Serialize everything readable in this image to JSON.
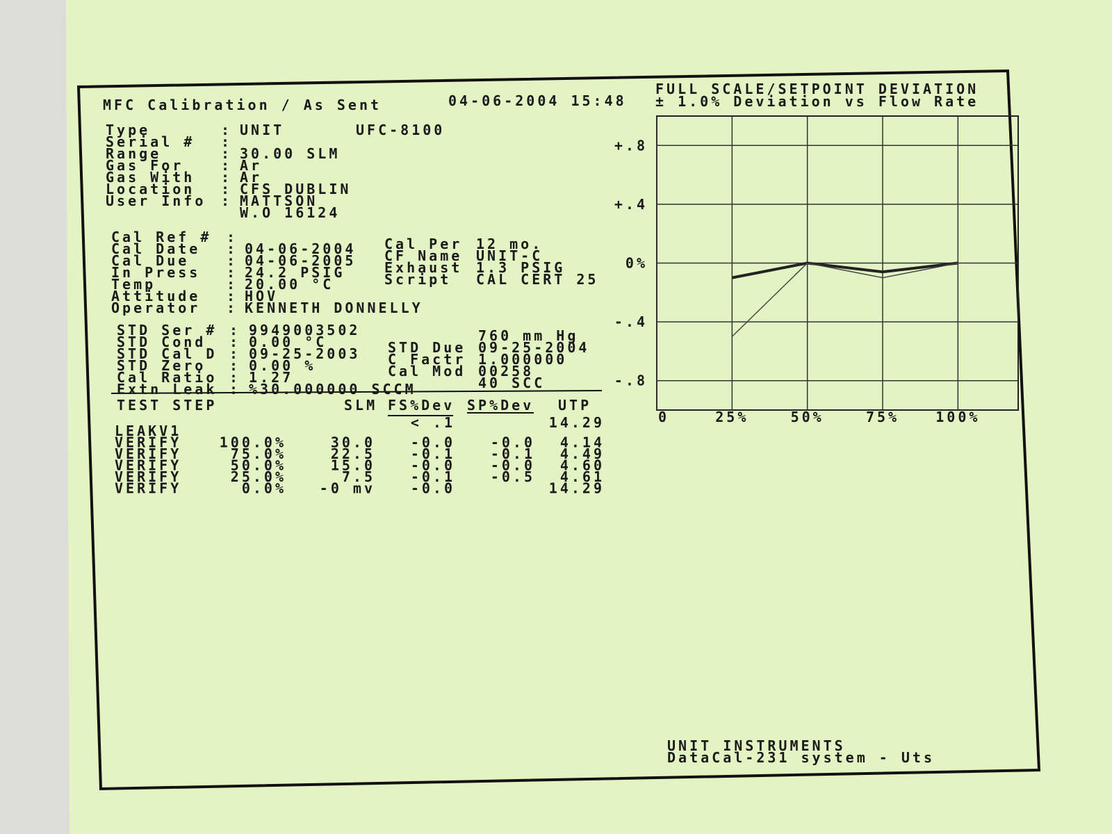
{
  "document": {
    "header": {
      "title": "MFC Calibration / As Sent",
      "timestamp": "04-06-2004 15:48"
    },
    "unit_info": [
      {
        "label": "Type",
        "values": [
          "UNIT",
          "UFC-8100"
        ]
      },
      {
        "label": "Serial #"
      },
      {
        "label": "Range",
        "values": [
          "30.00 SLM"
        ]
      },
      {
        "label": "Gas For",
        "values": [
          "Ar"
        ]
      },
      {
        "label": "Gas With",
        "values": [
          "Ar"
        ]
      },
      {
        "label": "Location",
        "values": [
          "CFS DUBLIN"
        ]
      },
      {
        "label": "User Info",
        "values": [
          "MATTSON"
        ]
      },
      {
        "values": [
          "W.O 16124"
        ]
      }
    ],
    "cal_info": [
      {
        "label": "Cal Ref #"
      },
      {
        "label": "Cal Date",
        "values": [
          "04-06-2004"
        ]
      },
      {
        "label": "Cal Due",
        "values": [
          "04-06-2005"
        ]
      },
      {
        "label": "In Press",
        "values": [
          "24.2 PSIG"
        ]
      },
      {
        "label": "Temp",
        "values": [
          "20.00 °C"
        ]
      },
      {
        "label": "Attitude",
        "values": [
          "HOV"
        ]
      },
      {
        "label": "Operator",
        "values": [
          "KENNETH DONNELLY"
        ]
      }
    ],
    "cal_info_right": [
      {
        "label": "Cal Per",
        "values": [
          "12 mo."
        ]
      },
      {
        "label": "CF Name",
        "values": [
          "UNIT-C"
        ]
      },
      {
        "label": "Exhaust",
        "values": [
          "1.3 PSIG"
        ]
      },
      {
        "label": "Script",
        "values": [
          "CAL CERT 25"
        ]
      }
    ],
    "std_info": [
      {
        "label": "STD Ser #",
        "values": [
          "9949003502"
        ]
      },
      {
        "label": "STD Cond",
        "values": [
          "0.00 °C"
        ]
      },
      {
        "label": "STD Cal D",
        "values": [
          "09-25-2003"
        ]
      },
      {
        "label": "STD Zero",
        "values": [
          "0.00 %"
        ]
      },
      {
        "label": "Cal Ratio",
        "values": [
          "1.27"
        ]
      },
      {
        "label": "Extn Leak",
        "values": [
          "%30.000000 SCCM"
        ]
      }
    ],
    "std_info_right": [
      {
        "values": [
          "760 mm Hg"
        ]
      },
      {
        "label": "STD Due",
        "values": [
          "09-25-2004"
        ]
      },
      {
        "label": "C Factr",
        "values": [
          "1.000000"
        ]
      },
      {
        "label": "Cal Mod",
        "values": [
          "00258"
        ]
      },
      {
        "values": [
          "40 SCC"
        ]
      }
    ],
    "table": {
      "headers": [
        "TEST STEP",
        "SLM",
        "FS%Dev",
        "SP%Dev",
        "UTP"
      ],
      "rows": [
        [
          "LEAKV1",
          null,
          null,
          "< .1",
          null,
          "14.29"
        ],
        [
          "VERIFY",
          "100.0%",
          "30.0",
          "-0.0",
          "-0.0",
          "4.14"
        ],
        [
          "VERIFY",
          "75.0%",
          "22.5",
          "-0.1",
          "-0.1",
          "4.49"
        ],
        [
          "VERIFY",
          "50.0%",
          "15.0",
          "-0.0",
          "-0.0",
          "4.60"
        ],
        [
          "VERIFY",
          "25.0%",
          "7.5",
          "-0.1",
          "-0.5",
          "4.61"
        ],
        [
          "VERIFY",
          "0.0%",
          "-0 mv",
          "-0.0",
          null,
          "14.29"
        ]
      ]
    },
    "footer": [
      "UNIT INSTRUMENTS",
      "DataCal-231 system - Uts"
    ]
  },
  "chart_data": {
    "type": "line",
    "title": "FULL SCALE/SETPOINT DEVIATION",
    "subtitle": "± 1.0% Deviation vs Flow Rate",
    "x": [
      25,
      50,
      75,
      100
    ],
    "series": [
      {
        "name": "FS%Dev",
        "color": "#222",
        "values": [
          -0.1,
          0.0,
          -0.06,
          0.0
        ]
      },
      {
        "name": "SP%Dev",
        "color": "#444",
        "values": [
          -0.5,
          0.0,
          -0.1,
          0.0
        ]
      }
    ],
    "xlim": [
      0,
      120
    ],
    "xticks": [
      0,
      {
        "value": 25,
        "label": "25%"
      },
      {
        "value": 50,
        "label": "50%"
      },
      {
        "value": 75,
        "label": "75%"
      },
      {
        "value": 100,
        "label": "100%"
      }
    ],
    "ylim": [
      -1,
      1
    ],
    "yticks": [
      {
        "value": 0.8,
        "label": "+.8"
      },
      {
        "value": 0.4,
        "label": "+.4"
      },
      {
        "value": 0,
        "label": "0%"
      },
      {
        "value": -0.4,
        "label": "-.4"
      },
      {
        "value": -0.8,
        "label": "-.8"
      }
    ],
    "grid": true
  }
}
